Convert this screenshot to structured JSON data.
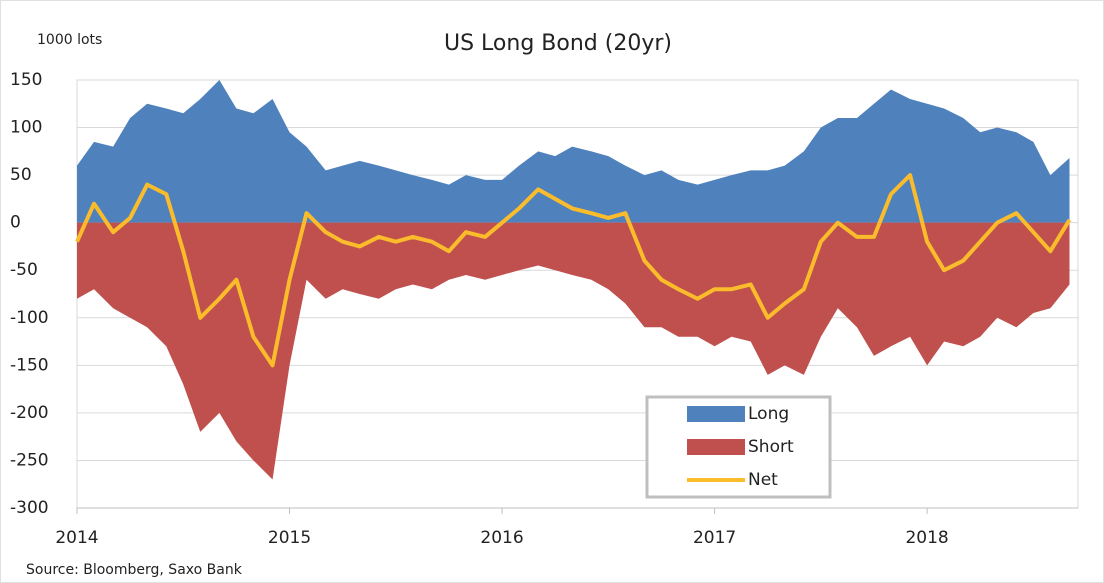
{
  "chart_data": {
    "type": "area_line",
    "title": "US Long Bond (20yr)",
    "y_label": "1000 lots",
    "source": "Source: Bloomberg,  Saxo Bank",
    "x": [
      2014,
      2014.08,
      2014.17,
      2014.25,
      2014.33,
      2014.42,
      2014.5,
      2014.58,
      2014.67,
      2014.75,
      2014.83,
      2014.92,
      2015,
      2015.08,
      2015.17,
      2015.25,
      2015.33,
      2015.42,
      2015.5,
      2015.58,
      2015.67,
      2015.75,
      2015.83,
      2015.92,
      2016,
      2016.08,
      2016.17,
      2016.25,
      2016.33,
      2016.42,
      2016.5,
      2016.58,
      2016.67,
      2016.75,
      2016.83,
      2016.92,
      2017,
      2017.08,
      2017.17,
      2017.25,
      2017.33,
      2017.42,
      2017.5,
      2017.58,
      2017.67,
      2017.75,
      2017.83,
      2017.92,
      2018,
      2018.08,
      2018.17,
      2018.25,
      2018.33,
      2018.42,
      2018.5,
      2018.58,
      2018.67
    ],
    "series": [
      {
        "name": "Long",
        "kind": "area",
        "color": "#4f81bd",
        "values": [
          60,
          85,
          80,
          110,
          125,
          120,
          115,
          130,
          150,
          120,
          115,
          130,
          95,
          80,
          55,
          60,
          65,
          60,
          55,
          50,
          45,
          40,
          50,
          45,
          45,
          60,
          75,
          70,
          80,
          75,
          70,
          60,
          50,
          55,
          45,
          40,
          45,
          50,
          55,
          55,
          60,
          75,
          100,
          110,
          110,
          125,
          140,
          130,
          125,
          120,
          110,
          95,
          100,
          95,
          85,
          50,
          68
        ]
      },
      {
        "name": "Short",
        "kind": "area",
        "color": "#c0504d",
        "values": [
          -80,
          -70,
          -90,
          -100,
          -110,
          -130,
          -170,
          -220,
          -200,
          -230,
          -250,
          -270,
          -150,
          -60,
          -80,
          -70,
          -75,
          -80,
          -70,
          -65,
          -70,
          -60,
          -55,
          -60,
          -55,
          -50,
          -45,
          -50,
          -55,
          -60,
          -70,
          -85,
          -110,
          -110,
          -120,
          -120,
          -130,
          -120,
          -125,
          -160,
          -150,
          -160,
          -120,
          -90,
          -110,
          -140,
          -130,
          -120,
          -150,
          -125,
          -130,
          -120,
          -100,
          -110,
          -95,
          -90,
          -65
        ]
      },
      {
        "name": "Net",
        "kind": "line",
        "color": "#fbbc2c",
        "values": [
          -20,
          20,
          -10,
          5,
          40,
          30,
          -30,
          -100,
          -80,
          -60,
          -120,
          -150,
          -60,
          10,
          -10,
          -20,
          -25,
          -15,
          -20,
          -15,
          -20,
          -30,
          -10,
          -15,
          0,
          15,
          35,
          25,
          15,
          10,
          5,
          10,
          -40,
          -60,
          -70,
          -80,
          -70,
          -70,
          -65,
          -100,
          -85,
          -70,
          -20,
          0,
          -15,
          -15,
          30,
          50,
          -20,
          -50,
          -40,
          -20,
          0,
          10,
          -10,
          -30,
          3
        ]
      }
    ],
    "xlim": [
      2014,
      2018.71
    ],
    "xticks": [
      2014,
      2015,
      2016,
      2017,
      2018
    ],
    "ylim": [
      -300,
      150
    ],
    "yticks": [
      -300,
      -250,
      -200,
      -150,
      -100,
      -50,
      0,
      50,
      100,
      150
    ],
    "grid": true,
    "legend_position": "lower center"
  }
}
